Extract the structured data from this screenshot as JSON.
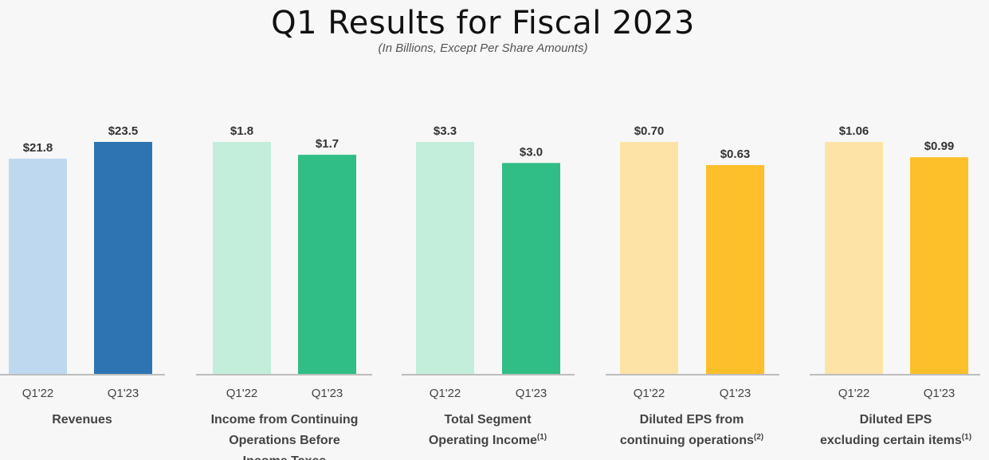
{
  "title": "Q1 Results for Fiscal 2023",
  "subtitle": "(In Billions, Except Per Share Amounts)",
  "chart_data": [
    {
      "type": "bar",
      "metric": "Revenues",
      "label_lines": [
        "Revenues"
      ],
      "footnote": "",
      "categories": [
        "Q1'22",
        "Q1'23"
      ],
      "values": [
        21.8,
        23.5
      ],
      "value_labels": [
        "$21.8",
        "$23.5"
      ],
      "colors": [
        "#bed8ef",
        "#2e74b3"
      ]
    },
    {
      "type": "bar",
      "metric": "Income from Continuing Operations Before Income Taxes",
      "label_lines": [
        "Income from Continuing",
        "Operations Before",
        "Income Taxes"
      ],
      "footnote": "",
      "categories": [
        "Q1'22",
        "Q1'23"
      ],
      "values": [
        1.8,
        1.7
      ],
      "value_labels": [
        "$1.8",
        "$1.7"
      ],
      "colors": [
        "#c2eedb",
        "#30bd86"
      ]
    },
    {
      "type": "bar",
      "metric": "Total Segment Operating Income",
      "label_lines": [
        "Total Segment",
        "Operating Income"
      ],
      "footnote": "(1)",
      "categories": [
        "Q1'22",
        "Q1'23"
      ],
      "values": [
        3.3,
        3.0
      ],
      "value_labels": [
        "$3.3",
        "$3.0"
      ],
      "colors": [
        "#c2eedb",
        "#30bd86"
      ]
    },
    {
      "type": "bar",
      "metric": "Diluted EPS from continuing operations",
      "label_lines": [
        "Diluted EPS from",
        "continuing operations"
      ],
      "footnote": "(2)",
      "categories": [
        "Q1'22",
        "Q1'23"
      ],
      "values": [
        0.7,
        0.63
      ],
      "value_labels": [
        "$0.70",
        "$0.63"
      ],
      "colors": [
        "#fde4a6",
        "#fdbf2a"
      ]
    },
    {
      "type": "bar",
      "metric": "Diluted EPS excluding certain items",
      "label_lines": [
        "Diluted EPS",
        "excluding certain items"
      ],
      "footnote": "(1)",
      "categories": [
        "Q1'22",
        "Q1'23"
      ],
      "values": [
        1.06,
        0.99
      ],
      "value_labels": [
        "$1.06",
        "$0.99"
      ],
      "colors": [
        "#fde4a6",
        "#fdbf2a"
      ]
    }
  ]
}
